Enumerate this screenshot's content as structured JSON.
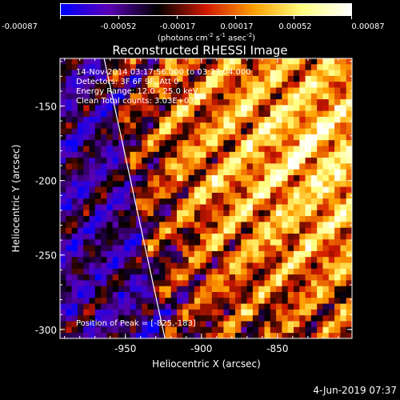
{
  "colorbar": {
    "ticks": [
      "-0.00087",
      "-0.00052",
      "-0.00017",
      "0.00017",
      "0.00052",
      "0.00087"
    ],
    "unit_text": "(photons cm",
    "unit_sup1": "-2",
    "unit_mid": " s",
    "unit_sup2": "-1",
    "unit_end": " asec",
    "unit_sup3": "-2",
    "unit_close": ")"
  },
  "annotations": {
    "time_range": "14-Nov-2014 03:17:56.000 to 03:23:04.000",
    "detectors": "Detectors: 3F 6F 9F, Att 0",
    "energy": "Energy Range: 12.0 - 25.0 keV",
    "clean": "Clean     Total counts: 3.03E+03",
    "peak": "Position of Peak = [-825,-183]"
  },
  "date_stamp": "4-Jun-2019 07:37",
  "colors": {
    "colormap": [
      "#0000ff",
      "#5a00b4",
      "#000000",
      "#d01800",
      "#ffa000",
      "#ffff80",
      "#ffffff"
    ],
    "limb": "#ffffff"
  },
  "chart_data": {
    "type": "heatmap",
    "title": "Reconstructed RHESSI Image",
    "xlabel": "Heliocentric X (arcsec)",
    "ylabel": "Heliocentric Y (arcsec)",
    "xlim": [
      -993,
      -801
    ],
    "ylim": [
      -306,
      -118
    ],
    "x_ticks": [
      -950,
      -900,
      -850
    ],
    "x_tick_labels": [
      "-950",
      "-900",
      "-850"
    ],
    "y_ticks": [
      -150,
      -200,
      -250,
      -300
    ],
    "y_tick_labels": [
      "-150",
      "-200",
      "-250",
      "-300"
    ],
    "value_range": [
      -0.00087,
      0.00087
    ],
    "peak_position": [
      -825,
      -183
    ],
    "limb_line": {
      "x": [
        -964,
        -924
      ],
      "y": [
        -118,
        -306
      ]
    },
    "grid": false
  }
}
